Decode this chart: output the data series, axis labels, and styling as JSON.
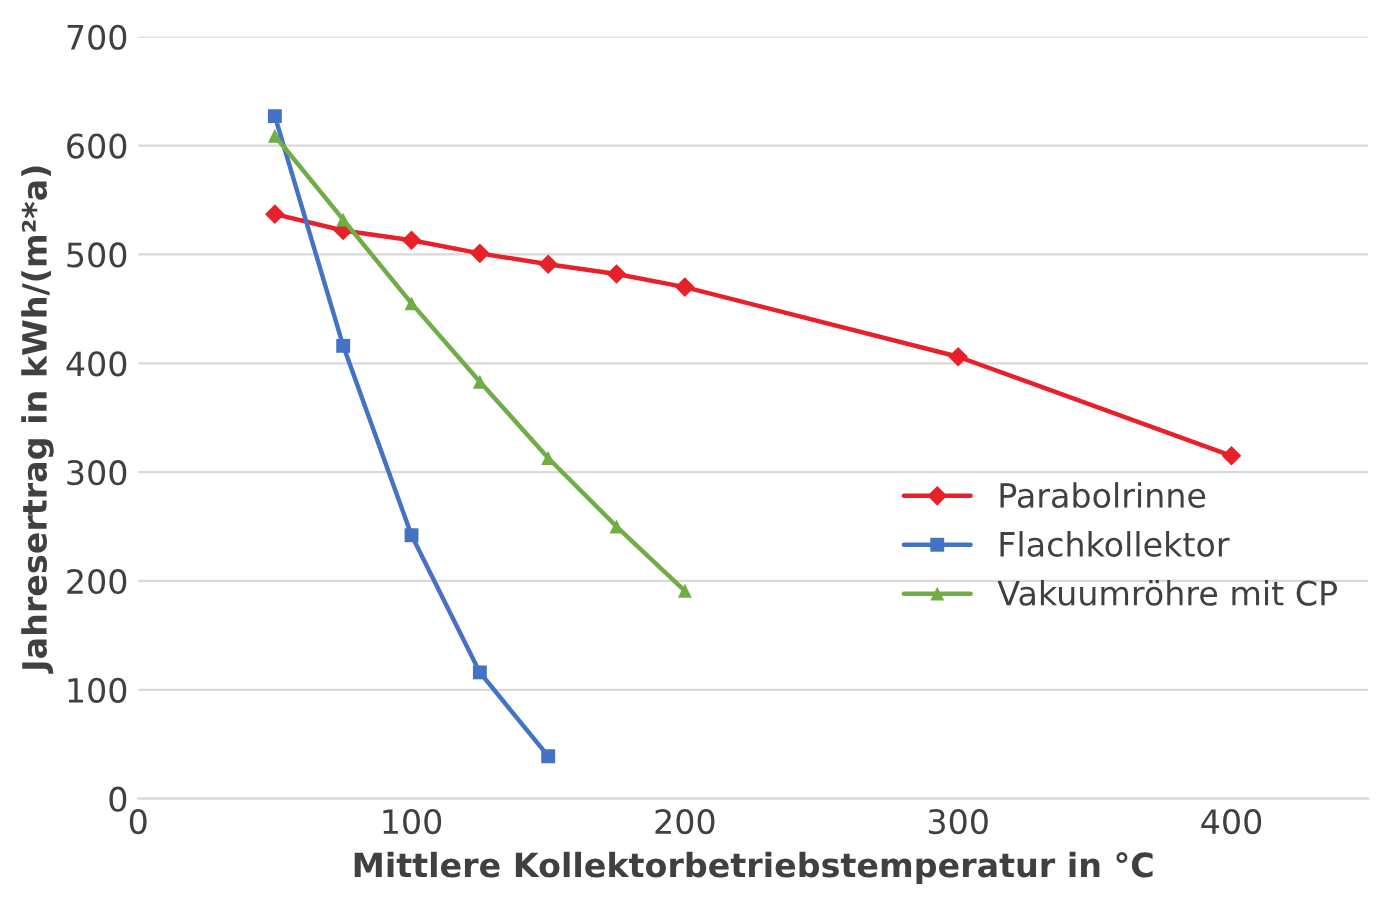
{
  "chart_data": {
    "type": "line",
    "xlabel": "Mittlere Kollektorbetriebstemperatur in °C",
    "ylabel": "Jahresertrag in kWh/(m²*a)",
    "series": [
      {
        "name": "Parabolrinne",
        "color": "#e8202a",
        "marker": "diamond",
        "x": [
          50,
          75,
          100,
          125,
          150,
          175,
          200,
          300,
          400
        ],
        "values": [
          537,
          522,
          513,
          501,
          491,
          482,
          470,
          406,
          315
        ]
      },
      {
        "name": "Flachkollektor",
        "color": "#4472c4",
        "marker": "square",
        "x": [
          50,
          75,
          100,
          125,
          150
        ],
        "values": [
          627,
          416,
          242,
          116,
          39
        ]
      },
      {
        "name": "Vakuumröhre mit CP",
        "color": "#70ad47",
        "marker": "triangle",
        "x": [
          50,
          75,
          100,
          125,
          150,
          175,
          200
        ],
        "values": [
          609,
          532,
          455,
          383,
          313,
          250,
          191
        ]
      }
    ],
    "xlim": [
      0,
      450
    ],
    "xticks": [
      0,
      100,
      200,
      300,
      400
    ],
    "ylim": [
      0,
      700
    ],
    "yticks": [
      0,
      100,
      200,
      300,
      400,
      500,
      600,
      700
    ],
    "grid": "y",
    "legend": "right",
    "line_style": "solid"
  }
}
